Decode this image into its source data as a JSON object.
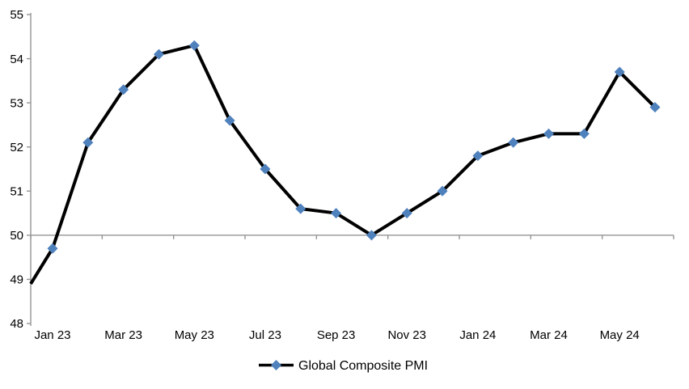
{
  "chart_data": {
    "type": "line",
    "title": "",
    "background_color": "#FFFFFF",
    "text_color": "#000000",
    "axis_color": "#949494",
    "grid": "off",
    "series": [
      {
        "name": "Global Composite PMI",
        "line_color": "#000000",
        "marker_color": "#4F81BD",
        "marker_shape": "diamond",
        "categories": [
          "Jan 23",
          "Feb 23",
          "Mar 23",
          "Apr 23",
          "May 23",
          "Jun 23",
          "Jul 23",
          "Aug 23",
          "Sep 23",
          "Oct 23",
          "Nov 23",
          "Dec 23",
          "Jan 24",
          "Feb 24",
          "Mar 24",
          "Apr 24",
          "May 24",
          "Jun 24"
        ],
        "values": [
          49.7,
          52.1,
          53.3,
          54.1,
          54.3,
          52.6,
          51.5,
          50.6,
          50.5,
          50.0,
          50.5,
          51.0,
          51.8,
          52.1,
          52.3,
          52.3,
          53.7,
          52.9
        ]
      }
    ],
    "edge_clipped_lead_in": {
      "value_at_left_axis": 48.9
    },
    "y_axis": {
      "min": 48,
      "max": 55,
      "tick_interval": 1,
      "tick_labels": [
        "48",
        "49",
        "50",
        "51",
        "52",
        "53",
        "54",
        "55"
      ]
    },
    "x_axis": {
      "crosses_at": 50,
      "label_every_n_points": 2,
      "tick_labels": [
        "Jan 23",
        "Mar 23",
        "May 23",
        "Jul 23",
        "Sep 23",
        "Nov 23",
        "Jan 24",
        "Mar 24",
        "May 24"
      ]
    },
    "legend": {
      "position": "bottom-center",
      "label": "Global Composite PMI"
    }
  }
}
